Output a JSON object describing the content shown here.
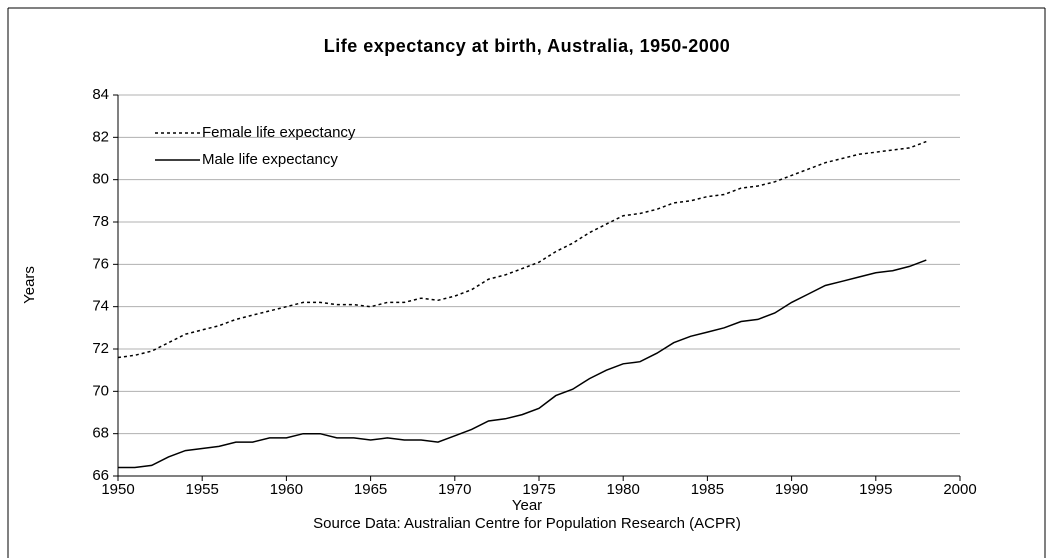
{
  "chart_data": {
    "type": "line",
    "title": "Life expectancy at birth, Australia, 1950-2000",
    "x_label": "Year",
    "y_label": "Years",
    "source": "Source Data: Australian Centre for Population Research (ACPR)",
    "x": [
      1950,
      1951,
      1952,
      1953,
      1954,
      1955,
      1956,
      1957,
      1958,
      1959,
      1960,
      1961,
      1962,
      1963,
      1964,
      1965,
      1966,
      1967,
      1968,
      1969,
      1970,
      1971,
      1972,
      1973,
      1974,
      1975,
      1976,
      1977,
      1978,
      1979,
      1980,
      1981,
      1982,
      1983,
      1984,
      1985,
      1986,
      1987,
      1988,
      1989,
      1990,
      1991,
      1992,
      1993,
      1994,
      1995,
      1996,
      1997,
      1998
    ],
    "series": [
      {
        "name": "Female life expectancy",
        "color": "#000000",
        "style": "dotted",
        "values": [
          71.6,
          71.7,
          71.9,
          72.3,
          72.7,
          72.9,
          73.1,
          73.4,
          73.6,
          73.8,
          74.0,
          74.2,
          74.2,
          74.1,
          74.1,
          74.0,
          74.2,
          74.2,
          74.4,
          74.3,
          74.5,
          74.8,
          75.3,
          75.5,
          75.8,
          76.1,
          76.6,
          77.0,
          77.5,
          77.9,
          78.3,
          78.4,
          78.6,
          78.9,
          79.0,
          79.2,
          79.3,
          79.6,
          79.7,
          79.9,
          80.2,
          80.5,
          80.8,
          81.0,
          81.2,
          81.3,
          81.4,
          81.5,
          81.8
        ]
      },
      {
        "name": "Male life expectancy",
        "color": "#000000",
        "style": "solid",
        "values": [
          66.4,
          66.4,
          66.5,
          66.9,
          67.2,
          67.3,
          67.4,
          67.6,
          67.6,
          67.8,
          67.8,
          68.0,
          68.0,
          67.8,
          67.8,
          67.7,
          67.8,
          67.7,
          67.7,
          67.6,
          67.9,
          68.2,
          68.6,
          68.7,
          68.9,
          69.2,
          69.8,
          70.1,
          70.6,
          71.0,
          71.3,
          71.4,
          71.8,
          72.3,
          72.6,
          72.8,
          73.0,
          73.3,
          73.4,
          73.7,
          74.2,
          74.6,
          75.0,
          75.2,
          75.4,
          75.6,
          75.7,
          75.9,
          76.2
        ]
      }
    ],
    "xlim": [
      1950,
      2000
    ],
    "xticks": [
      1950,
      1955,
      1960,
      1965,
      1970,
      1975,
      1980,
      1985,
      1990,
      1995,
      2000
    ],
    "ylim": [
      66,
      84
    ],
    "yticks": [
      66,
      68,
      70,
      72,
      74,
      76,
      78,
      80,
      82,
      84
    ],
    "grid": true,
    "legend": "upper left"
  }
}
